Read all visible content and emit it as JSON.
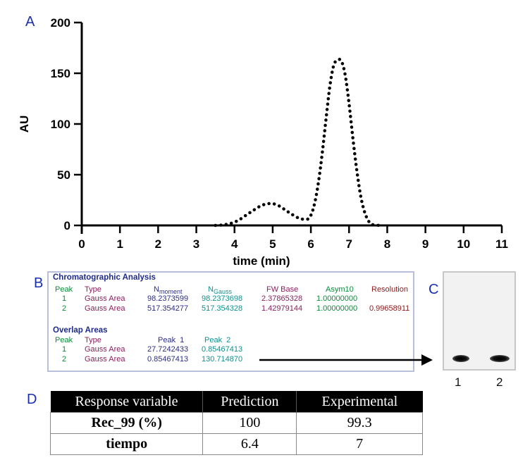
{
  "panels": {
    "a": "A",
    "b": "B",
    "c": "C",
    "d": "D"
  },
  "chart_data": {
    "type": "line",
    "title": "",
    "xlabel": "time (min)",
    "ylabel": "AU",
    "xlim": [
      0,
      11
    ],
    "ylim": [
      0,
      200
    ],
    "x_ticks": [
      0,
      1,
      2,
      3,
      4,
      5,
      6,
      7,
      8,
      9,
      10,
      11
    ],
    "y_ticks": [
      0,
      50,
      100,
      150,
      200
    ],
    "grid": false,
    "line_style": "dotted",
    "color": "#000000",
    "x": [
      3.5,
      3.7,
      3.9,
      4.1,
      4.3,
      4.5,
      4.7,
      4.9,
      5.1,
      5.3,
      5.5,
      5.7,
      5.9,
      6.0,
      6.1,
      6.2,
      6.3,
      6.4,
      6.5,
      6.6,
      6.7,
      6.8,
      6.9,
      7.0,
      7.1,
      7.2,
      7.3,
      7.4,
      7.5,
      7.6,
      7.8
    ],
    "y": [
      0,
      0.5,
      2,
      5,
      10,
      15,
      19.5,
      21.5,
      20.5,
      16,
      11,
      7,
      6,
      10,
      22,
      43,
      72,
      106,
      138,
      158,
      163,
      162,
      148,
      120,
      86,
      55,
      30,
      14,
      5,
      1,
      0
    ]
  },
  "analysis": {
    "title": "Chromatographic Analysis",
    "headers": [
      "Peak",
      "Type",
      "N",
      "moment",
      "N",
      "Gauss",
      "FW Base",
      "Asym10",
      "Resolution"
    ],
    "rows": [
      [
        "1",
        "Gauss Area",
        "98.2373599",
        "98.2373698",
        "2.37865328",
        "1.00000000",
        ""
      ],
      [
        "2",
        "Gauss Area",
        "517.354277",
        "517.354328",
        "1.42979144",
        "1.00000000",
        "0.99658911"
      ]
    ],
    "overlap_title": "Overlap Areas",
    "overlap_headers": [
      "Peak",
      "Type",
      "Peak  1",
      "Peak  2"
    ],
    "overlap_rows": [
      [
        "1",
        "Gauss Area",
        "27.7242433",
        "0.85467413"
      ],
      [
        "2",
        "Gauss Area",
        "0.85467413",
        "130.714870"
      ]
    ]
  },
  "gel": {
    "lanes": [
      "1",
      "2"
    ]
  },
  "table": {
    "headers": [
      "Response variable",
      "Prediction",
      "Experimental"
    ],
    "rows": [
      [
        "Rec_99 (%)",
        "100",
        "99.3"
      ],
      [
        "tiempo",
        "6.4",
        "7"
      ]
    ]
  }
}
